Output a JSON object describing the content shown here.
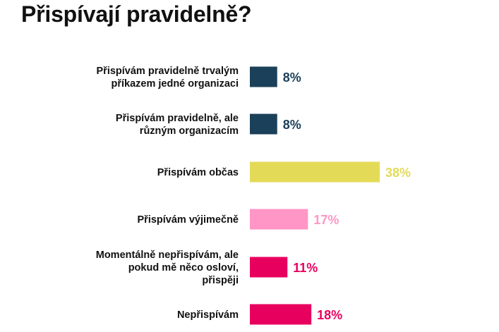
{
  "title": "Přispívají pravidelně?",
  "chart_data": {
    "type": "bar",
    "orientation": "horizontal",
    "title": "Přispívají pravidelně?",
    "categories": [
      [
        "Přispívám pravidelně trvalým",
        "příkazem jedné organizaci"
      ],
      [
        "Přispívám pravidelně, ale",
        "různým organizacím"
      ],
      [
        "Přispívám občas"
      ],
      [
        "Přispívám výjimečně"
      ],
      [
        "Momentálně nepřispívám, ale",
        "pokud mě něco osloví,",
        "přispěji"
      ],
      [
        "Nepřispívám"
      ]
    ],
    "values": [
      8,
      8,
      38,
      17,
      11,
      18
    ],
    "value_labels": [
      "8%",
      "8%",
      "38%",
      "17%",
      "11%",
      "18%"
    ],
    "colors": [
      "#1b4059",
      "#1b4059",
      "#e3db57",
      "#ff96c5",
      "#e8005f",
      "#e8005f"
    ],
    "xlim": [
      0,
      38
    ],
    "grid": false,
    "legend": "none"
  }
}
